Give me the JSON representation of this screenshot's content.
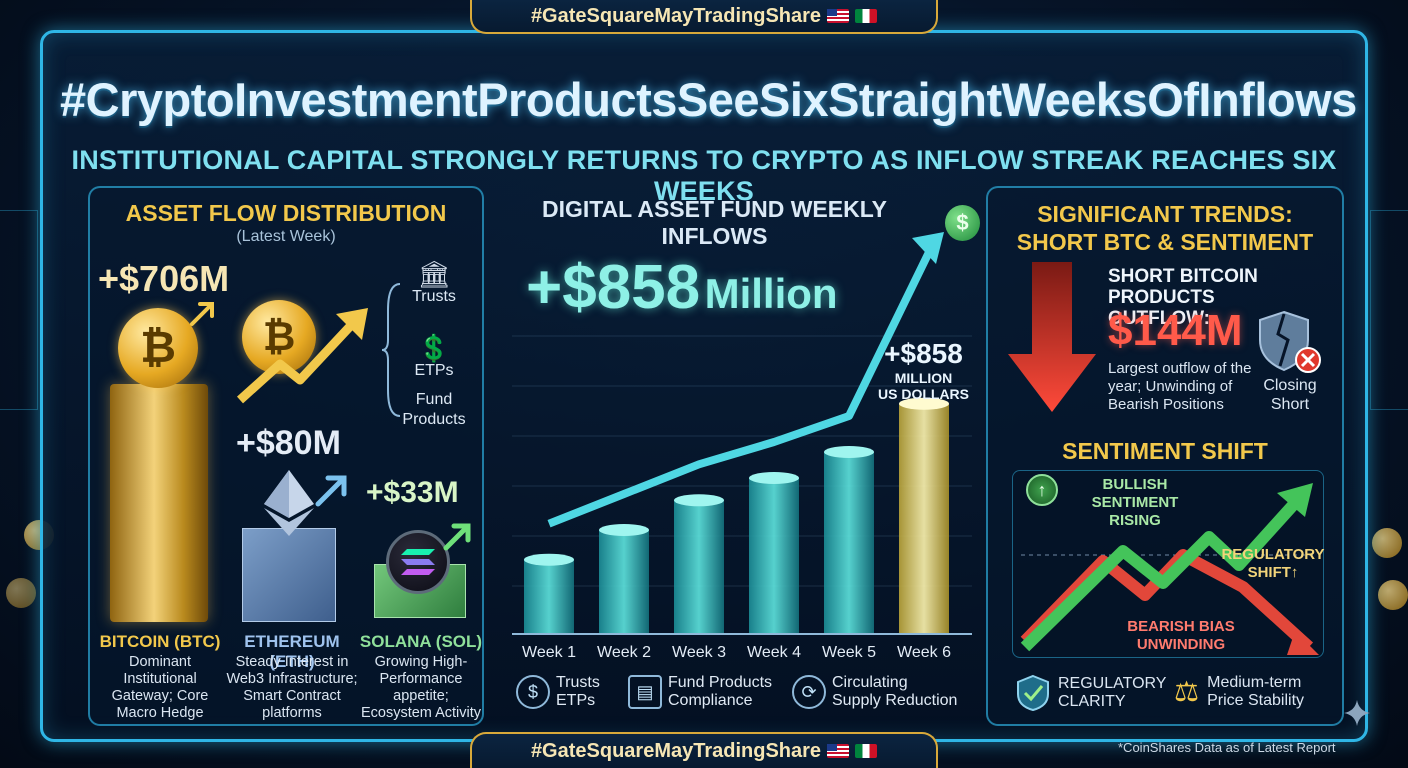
{
  "banner": {
    "hashtag": "#GateSquareMayTradingShare"
  },
  "title": "#CryptoInvestmentProductsSeeSixStraightWeeksOfInflows",
  "subtitle": "INSTITUTIONAL CAPITAL STRONGLY RETURNS TO CRYPTO AS INFLOW STREAK REACHES SIX WEEKS",
  "asset_flow": {
    "heading": "ASSET FLOW DISTRIBUTION",
    "subheading": "(Latest Week)",
    "assets": [
      {
        "value": "+$706M",
        "name": "BITCOIN (BTC)",
        "desc": [
          "Dominant",
          "Institutional",
          "Gateway; Core",
          "Macro Hedge"
        ],
        "color": "#f2c84b"
      },
      {
        "value": "+$80M",
        "name": "ETHEREUM (ETH)",
        "desc": [
          "Steady Interest in",
          "Web3 Infrastructure;",
          "Smart Contract",
          "platforms"
        ],
        "color": "#9fc3ee"
      },
      {
        "value": "+$33M",
        "name": "SOLANA (SOL)",
        "desc": [
          "Growing High-",
          "Performance",
          "appetite;",
          "Ecosystem Activity"
        ],
        "color": "#8fe09a"
      }
    ],
    "product_types": [
      "Trusts",
      "ETPs",
      "Fund",
      "Products"
    ]
  },
  "weekly": {
    "heading": "DIGITAL ASSET FUND WEEKLY INFLOWS",
    "headline_value": "+$858",
    "headline_unit": "Million",
    "week6_value": "+$858",
    "week6_unit_1": "MILLION",
    "week6_unit_2": "US DOLLARS",
    "legend": [
      {
        "icon": "dollar-coin-icon",
        "lines": [
          "Trusts",
          "ETPs"
        ]
      },
      {
        "icon": "document-chart-icon",
        "lines": [
          "Fund Products",
          "Compliance"
        ]
      },
      {
        "icon": "circulating-dollar-icon",
        "lines": [
          "Circulating",
          "Supply Reduction"
        ]
      }
    ]
  },
  "chart_data": {
    "type": "bar",
    "categories": [
      "Week 1",
      "Week 2",
      "Week 3",
      "Week 4",
      "Week 5",
      "Week 6"
    ],
    "values": [
      1,
      1.4,
      1.8,
      2.1,
      2.45,
      3.1
    ],
    "highlight_index": 5,
    "ylim": [
      0,
      3.5
    ],
    "trend_arrow": true
  },
  "trends": {
    "heading_1": "SIGNIFICANT TRENDS:",
    "heading_2": "SHORT BTC & SENTIMENT",
    "short_title": [
      "SHORT BITCOIN PRODUCTS",
      "OUTFLOW:"
    ],
    "short_value": "$144M",
    "short_desc": [
      "Largest outflow of the",
      "year; Unwinding of",
      "Bearish Positions"
    ],
    "shield_label": [
      "Closing",
      "Short"
    ],
    "sentiment_heading": "SENTIMENT SHIFT",
    "bullish": [
      "BULLISH",
      "SENTIMENT",
      "RISING"
    ],
    "regulatory": [
      "REGULATORY",
      "SHIFT↑"
    ],
    "bearish": [
      "BEARISH BIAS",
      "UNWINDING"
    ],
    "footer": [
      {
        "icon": "shield-check-icon",
        "lines": [
          "REGULATORY",
          "CLARITY"
        ]
      },
      {
        "icon": "scales-icon",
        "lines": [
          "Medium-term",
          "Price Stability"
        ]
      }
    ]
  },
  "footnote": "*CoinShares Data as of Latest Report",
  "colors": {
    "frame": "#2fb6e6",
    "gold": "#f2c84b",
    "teal": "#8ef0e6",
    "red": "#ff5a4a",
    "green": "#3fbf5a"
  }
}
